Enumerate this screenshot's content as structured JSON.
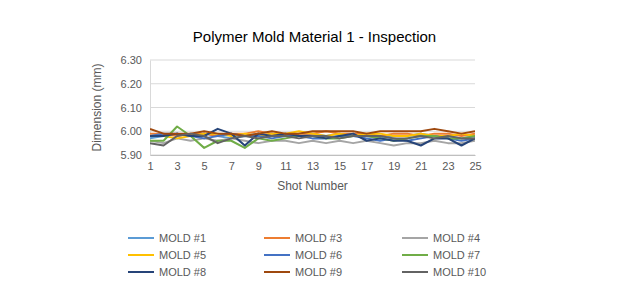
{
  "chart_data": {
    "type": "line",
    "title": "Polymer Mold Material 1 - Inspection",
    "x_label": "Shot Number",
    "y_label": "Dimension (mm)",
    "x": [
      1,
      2,
      3,
      4,
      5,
      6,
      7,
      8,
      9,
      10,
      11,
      12,
      13,
      14,
      15,
      16,
      17,
      18,
      19,
      20,
      21,
      22,
      23,
      24,
      25
    ],
    "xlim": [
      1,
      25
    ],
    "xticks": [
      1,
      3,
      5,
      7,
      9,
      11,
      13,
      15,
      17,
      19,
      21,
      23,
      25
    ],
    "ylim": [
      5.9,
      6.3
    ],
    "yticks": [
      {
        "value": 5.9,
        "label": "5.90"
      },
      {
        "value": 6.0,
        "label": "6.00"
      },
      {
        "value": 6.1,
        "label": "6.10"
      },
      {
        "value": 6.2,
        "label": "6.20"
      },
      {
        "value": 6.3,
        "label": "6.30"
      }
    ],
    "grid": true,
    "legend": "bottom",
    "series": [
      {
        "name": "MOLD #1",
        "color": "#5b9bd5",
        "values": [
          5.97,
          5.98,
          5.99,
          5.98,
          5.99,
          5.98,
          5.97,
          5.98,
          5.99,
          5.98,
          5.99,
          5.98,
          5.99,
          5.98,
          5.99,
          5.98,
          5.98,
          5.97,
          5.98,
          5.98,
          5.99,
          5.98,
          5.98,
          5.97,
          5.98
        ]
      },
      {
        "name": "MOLD #3",
        "color": "#ed7d31",
        "values": [
          5.99,
          5.99,
          5.98,
          5.99,
          5.99,
          5.98,
          5.99,
          5.99,
          6.0,
          5.99,
          5.98,
          5.99,
          5.99,
          6.0,
          5.99,
          5.99,
          5.99,
          5.98,
          5.99,
          5.99,
          5.98,
          5.99,
          5.99,
          5.98,
          5.99
        ]
      },
      {
        "name": "MOLD #4",
        "color": "#a5a5a5",
        "values": [
          5.96,
          5.95,
          5.97,
          5.96,
          5.97,
          5.96,
          5.97,
          5.96,
          5.95,
          5.96,
          5.96,
          5.95,
          5.96,
          5.95,
          5.96,
          5.95,
          5.96,
          5.95,
          5.94,
          5.95,
          5.95,
          5.96,
          5.95,
          5.95,
          5.96
        ]
      },
      {
        "name": "MOLD #5",
        "color": "#ffc000",
        "values": [
          5.98,
          5.98,
          5.97,
          5.98,
          5.99,
          5.99,
          5.98,
          5.99,
          5.98,
          5.99,
          5.99,
          6.0,
          5.99,
          5.98,
          5.99,
          5.98,
          5.99,
          5.99,
          5.98,
          5.98,
          5.99,
          5.98,
          5.98,
          5.99,
          5.98
        ]
      },
      {
        "name": "MOLD #6",
        "color": "#4472c4",
        "values": [
          5.98,
          5.99,
          5.99,
          5.98,
          5.97,
          5.98,
          5.99,
          5.98,
          5.98,
          5.97,
          5.98,
          5.98,
          5.97,
          5.97,
          5.98,
          5.98,
          5.97,
          5.96,
          5.97,
          5.96,
          5.97,
          5.98,
          5.97,
          5.96,
          5.97
        ]
      },
      {
        "name": "MOLD #7",
        "color": "#70ad47",
        "values": [
          5.96,
          5.96,
          6.02,
          5.98,
          5.93,
          5.96,
          5.96,
          5.93,
          5.97,
          5.96,
          5.97,
          5.98,
          5.98,
          5.97,
          5.97,
          5.98,
          5.98,
          5.97,
          5.96,
          5.97,
          5.98,
          5.98,
          5.97,
          5.97,
          5.98
        ]
      },
      {
        "name": "MOLD #8",
        "color": "#264478",
        "values": [
          5.98,
          5.98,
          5.99,
          5.98,
          5.98,
          6.01,
          5.99,
          5.94,
          5.99,
          5.98,
          5.99,
          5.98,
          5.98,
          5.97,
          5.98,
          5.99,
          5.96,
          5.97,
          5.96,
          5.96,
          5.94,
          5.97,
          5.97,
          5.94,
          5.97
        ]
      },
      {
        "name": "MOLD #9",
        "color": "#9e480e",
        "values": [
          6.01,
          5.99,
          5.99,
          5.99,
          6.0,
          5.99,
          5.99,
          5.98,
          5.99,
          6.0,
          5.99,
          5.99,
          6.0,
          6.0,
          6.0,
          6.0,
          5.99,
          6.0,
          6.0,
          6.0,
          6.0,
          6.01,
          6.0,
          5.99,
          6.0
        ]
      },
      {
        "name": "MOLD #10",
        "color": "#636363",
        "values": [
          5.95,
          5.94,
          5.98,
          5.99,
          5.98,
          5.95,
          5.97,
          5.98,
          5.97,
          5.98,
          5.98,
          5.97,
          5.98,
          5.98,
          5.97,
          5.98,
          5.98,
          5.98,
          5.97,
          5.97,
          5.98,
          5.97,
          5.98,
          5.97,
          5.97
        ]
      }
    ]
  }
}
